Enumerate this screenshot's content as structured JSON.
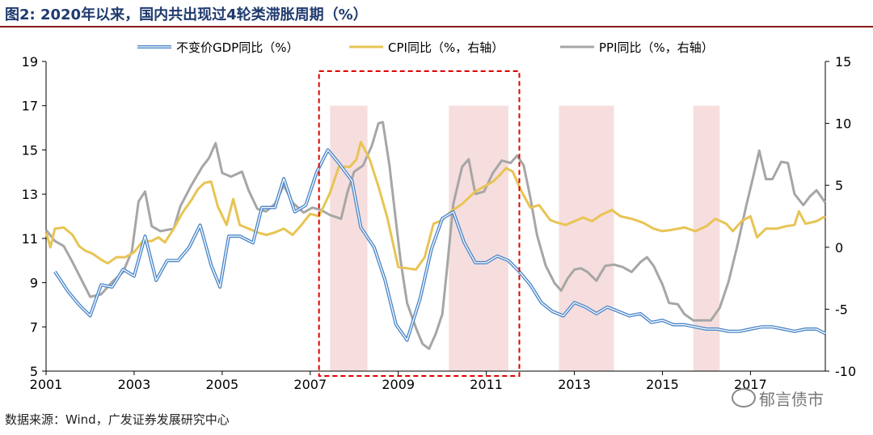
{
  "header": {
    "title": "图2: 2020年以来，国内共出现过4轮类滞胀周期（%）"
  },
  "footer": {
    "source": "数据来源：Wind，广发证券发展研究中心",
    "watermark": "郁言债市"
  },
  "chart_data": {
    "type": "line",
    "title": "图2: 2020年以来，国内共出现过4轮类滞胀周期（%）",
    "x_ticks": [
      "2001",
      "2003",
      "2005",
      "2007",
      "2009",
      "2011",
      "2013",
      "2015",
      "2017"
    ],
    "x_range": [
      2001.0,
      2018.7
    ],
    "y_left": {
      "range": [
        5,
        19
      ],
      "ticks": [
        "5",
        "7",
        "9",
        "11",
        "13",
        "15",
        "17",
        "19"
      ]
    },
    "y_right": {
      "range": [
        -10,
        15
      ],
      "ticks": [
        "-10",
        "-5",
        "0",
        "5",
        "10",
        "15"
      ]
    },
    "colors": {
      "gdp": "#4a86c8",
      "gdp_inner": "#ffffff",
      "cpi": "#e8c454",
      "ppi": "#a6a6a6",
      "shade": "#f6dede",
      "box": "#e00000",
      "axis": "#000000"
    },
    "shaded_periods": [
      [
        2007.45,
        2008.3
      ],
      [
        2010.15,
        2011.5
      ],
      [
        2012.65,
        2013.9
      ],
      [
        2015.7,
        2016.3
      ]
    ],
    "highlight_box": [
      2007.2,
      2011.75
    ],
    "series": [
      {
        "key": "gdp",
        "name": "不变价GDP同比（%）",
        "axis": "left",
        "points": [
          [
            2001.2,
            9.5
          ],
          [
            2001.5,
            8.6
          ],
          [
            2001.75,
            8.0
          ],
          [
            2002.0,
            7.5
          ],
          [
            2002.25,
            8.9
          ],
          [
            2002.5,
            8.8
          ],
          [
            2002.75,
            9.6
          ],
          [
            2003.0,
            9.3
          ],
          [
            2003.25,
            11.1
          ],
          [
            2003.5,
            9.1
          ],
          [
            2003.75,
            10.0
          ],
          [
            2004.0,
            10.0
          ],
          [
            2004.25,
            10.6
          ],
          [
            2004.5,
            11.6
          ],
          [
            2004.75,
            9.8
          ],
          [
            2004.95,
            8.8
          ],
          [
            2005.15,
            11.1
          ],
          [
            2005.4,
            11.1
          ],
          [
            2005.7,
            10.8
          ],
          [
            2005.9,
            12.4
          ],
          [
            2006.2,
            12.4
          ],
          [
            2006.4,
            13.7
          ],
          [
            2006.65,
            12.2
          ],
          [
            2006.9,
            12.5
          ],
          [
            2007.15,
            14.0
          ],
          [
            2007.4,
            15.0
          ],
          [
            2007.65,
            14.4
          ],
          [
            2007.95,
            13.6
          ],
          [
            2008.15,
            11.5
          ],
          [
            2008.45,
            10.6
          ],
          [
            2008.7,
            9.1
          ],
          [
            2008.95,
            7.1
          ],
          [
            2009.2,
            6.4
          ],
          [
            2009.5,
            8.3
          ],
          [
            2009.75,
            10.5
          ],
          [
            2010.0,
            11.9
          ],
          [
            2010.25,
            12.2
          ],
          [
            2010.5,
            10.8
          ],
          [
            2010.75,
            9.9
          ],
          [
            2011.0,
            9.9
          ],
          [
            2011.25,
            10.2
          ],
          [
            2011.5,
            10.0
          ],
          [
            2011.75,
            9.5
          ],
          [
            2012.0,
            8.9
          ],
          [
            2012.25,
            8.1
          ],
          [
            2012.5,
            7.7
          ],
          [
            2012.75,
            7.5
          ],
          [
            2013.0,
            8.1
          ],
          [
            2013.25,
            7.9
          ],
          [
            2013.5,
            7.6
          ],
          [
            2013.75,
            7.9
          ],
          [
            2014.0,
            7.7
          ],
          [
            2014.25,
            7.5
          ],
          [
            2014.5,
            7.6
          ],
          [
            2014.75,
            7.2
          ],
          [
            2015.0,
            7.3
          ],
          [
            2015.25,
            7.1
          ],
          [
            2015.5,
            7.1
          ],
          [
            2015.75,
            7.0
          ],
          [
            2016.0,
            6.9
          ],
          [
            2016.25,
            6.9
          ],
          [
            2016.5,
            6.8
          ],
          [
            2016.75,
            6.8
          ],
          [
            2017.0,
            6.9
          ],
          [
            2017.25,
            7.0
          ],
          [
            2017.5,
            7.0
          ],
          [
            2017.75,
            6.9
          ],
          [
            2018.0,
            6.8
          ],
          [
            2018.25,
            6.9
          ],
          [
            2018.5,
            6.9
          ],
          [
            2018.7,
            6.7
          ]
        ]
      },
      {
        "key": "cpi",
        "name": "CPI同比（%，右轴）",
        "axis": "right",
        "points": [
          [
            2001.0,
            1.2
          ],
          [
            2001.1,
            0.0
          ],
          [
            2001.2,
            1.5
          ],
          [
            2001.4,
            1.6
          ],
          [
            2001.6,
            1.0
          ],
          [
            2001.75,
            0.1
          ],
          [
            2001.9,
            -0.3
          ],
          [
            2002.05,
            -0.5
          ],
          [
            2002.25,
            -1.0
          ],
          [
            2002.4,
            -1.3
          ],
          [
            2002.6,
            -0.8
          ],
          [
            2002.8,
            -0.8
          ],
          [
            2003.0,
            -0.4
          ],
          [
            2003.2,
            0.5
          ],
          [
            2003.4,
            0.5
          ],
          [
            2003.55,
            0.8
          ],
          [
            2003.7,
            0.4
          ],
          [
            2003.9,
            1.5
          ],
          [
            2004.1,
            2.8
          ],
          [
            2004.3,
            3.8
          ],
          [
            2004.45,
            4.7
          ],
          [
            2004.6,
            5.2
          ],
          [
            2004.75,
            5.3
          ],
          [
            2004.9,
            3.3
          ],
          [
            2005.1,
            1.8
          ],
          [
            2005.25,
            3.9
          ],
          [
            2005.4,
            1.8
          ],
          [
            2005.6,
            1.5
          ],
          [
            2005.8,
            1.2
          ],
          [
            2006.0,
            1.0
          ],
          [
            2006.2,
            1.2
          ],
          [
            2006.4,
            1.5
          ],
          [
            2006.6,
            1.0
          ],
          [
            2006.8,
            1.8
          ],
          [
            2007.0,
            2.7
          ],
          [
            2007.2,
            2.5
          ],
          [
            2007.45,
            4.4
          ],
          [
            2007.65,
            6.5
          ],
          [
            2007.9,
            6.5
          ],
          [
            2008.05,
            7.1
          ],
          [
            2008.15,
            8.5
          ],
          [
            2008.35,
            7.1
          ],
          [
            2008.55,
            4.9
          ],
          [
            2008.75,
            2.4
          ],
          [
            2009.0,
            -1.6
          ],
          [
            2009.2,
            -1.7
          ],
          [
            2009.4,
            -1.8
          ],
          [
            2009.6,
            -0.8
          ],
          [
            2009.8,
            1.9
          ],
          [
            2010.0,
            2.2
          ],
          [
            2010.2,
            2.9
          ],
          [
            2010.45,
            3.5
          ],
          [
            2010.75,
            4.5
          ],
          [
            2010.95,
            4.9
          ],
          [
            2011.15,
            5.3
          ],
          [
            2011.3,
            5.8
          ],
          [
            2011.45,
            6.4
          ],
          [
            2011.6,
            6.1
          ],
          [
            2011.8,
            4.5
          ],
          [
            2012.0,
            3.2
          ],
          [
            2012.2,
            3.4
          ],
          [
            2012.45,
            2.2
          ],
          [
            2012.6,
            2.0
          ],
          [
            2012.8,
            1.8
          ],
          [
            2013.0,
            2.1
          ],
          [
            2013.2,
            2.4
          ],
          [
            2013.4,
            2.1
          ],
          [
            2013.6,
            2.6
          ],
          [
            2013.85,
            3.0
          ],
          [
            2014.05,
            2.5
          ],
          [
            2014.3,
            2.3
          ],
          [
            2014.55,
            2.0
          ],
          [
            2014.8,
            1.5
          ],
          [
            2015.0,
            1.3
          ],
          [
            2015.2,
            1.4
          ],
          [
            2015.5,
            1.6
          ],
          [
            2015.75,
            1.3
          ],
          [
            2016.0,
            1.7
          ],
          [
            2016.2,
            2.3
          ],
          [
            2016.45,
            1.9
          ],
          [
            2016.6,
            1.3
          ],
          [
            2016.8,
            2.1
          ],
          [
            2017.0,
            2.5
          ],
          [
            2017.15,
            0.8
          ],
          [
            2017.35,
            1.5
          ],
          [
            2017.6,
            1.5
          ],
          [
            2017.8,
            1.7
          ],
          [
            2018.0,
            1.8
          ],
          [
            2018.1,
            2.9
          ],
          [
            2018.25,
            1.9
          ],
          [
            2018.5,
            2.1
          ],
          [
            2018.7,
            2.5
          ]
        ]
      },
      {
        "key": "ppi",
        "name": "PPI同比（%，右轴）",
        "axis": "right",
        "points": [
          [
            2001.0,
            1.4
          ],
          [
            2001.2,
            0.5
          ],
          [
            2001.4,
            0.1
          ],
          [
            2001.6,
            -1.2
          ],
          [
            2001.8,
            -2.6
          ],
          [
            2002.0,
            -4.0
          ],
          [
            2002.25,
            -3.8
          ],
          [
            2002.5,
            -2.8
          ],
          [
            2002.75,
            -2.0
          ],
          [
            2002.95,
            -0.3
          ],
          [
            2003.1,
            3.7
          ],
          [
            2003.25,
            4.5
          ],
          [
            2003.4,
            1.7
          ],
          [
            2003.6,
            1.3
          ],
          [
            2003.9,
            1.5
          ],
          [
            2004.05,
            3.3
          ],
          [
            2004.3,
            5.0
          ],
          [
            2004.55,
            6.5
          ],
          [
            2004.7,
            7.2
          ],
          [
            2004.85,
            8.4
          ],
          [
            2005.0,
            6.0
          ],
          [
            2005.2,
            5.7
          ],
          [
            2005.45,
            6.1
          ],
          [
            2005.6,
            4.6
          ],
          [
            2005.8,
            3.1
          ],
          [
            2006.0,
            2.9
          ],
          [
            2006.2,
            3.5
          ],
          [
            2006.4,
            5.0
          ],
          [
            2006.6,
            3.6
          ],
          [
            2006.85,
            2.8
          ],
          [
            2007.05,
            3.2
          ],
          [
            2007.25,
            3.0
          ],
          [
            2007.45,
            2.6
          ],
          [
            2007.7,
            2.3
          ],
          [
            2007.85,
            4.5
          ],
          [
            2008.0,
            6.1
          ],
          [
            2008.2,
            6.6
          ],
          [
            2008.4,
            8.2
          ],
          [
            2008.55,
            10.0
          ],
          [
            2008.65,
            10.1
          ],
          [
            2008.8,
            6.6
          ],
          [
            2008.95,
            2.0
          ],
          [
            2009.05,
            -1.0
          ],
          [
            2009.2,
            -4.5
          ],
          [
            2009.4,
            -6.5
          ],
          [
            2009.55,
            -7.8
          ],
          [
            2009.7,
            -8.2
          ],
          [
            2009.85,
            -7.0
          ],
          [
            2010.0,
            -5.4
          ],
          [
            2010.1,
            -2.0
          ],
          [
            2010.25,
            3.5
          ],
          [
            2010.45,
            6.5
          ],
          [
            2010.6,
            7.1
          ],
          [
            2010.75,
            4.3
          ],
          [
            2010.95,
            4.5
          ],
          [
            2011.15,
            6.0
          ],
          [
            2011.35,
            7.0
          ],
          [
            2011.55,
            6.8
          ],
          [
            2011.7,
            7.4
          ],
          [
            2011.85,
            6.6
          ],
          [
            2012.0,
            4.0
          ],
          [
            2012.15,
            1.0
          ],
          [
            2012.35,
            -1.5
          ],
          [
            2012.55,
            -2.9
          ],
          [
            2012.7,
            -3.5
          ],
          [
            2012.85,
            -2.5
          ],
          [
            2013.0,
            -1.8
          ],
          [
            2013.15,
            -1.7
          ],
          [
            2013.3,
            -2.0
          ],
          [
            2013.5,
            -2.7
          ],
          [
            2013.7,
            -1.5
          ],
          [
            2013.9,
            -1.4
          ],
          [
            2014.1,
            -1.6
          ],
          [
            2014.3,
            -2.0
          ],
          [
            2014.5,
            -1.2
          ],
          [
            2014.65,
            -0.8
          ],
          [
            2014.8,
            -1.5
          ],
          [
            2015.0,
            -3.0
          ],
          [
            2015.15,
            -4.5
          ],
          [
            2015.35,
            -4.6
          ],
          [
            2015.5,
            -5.4
          ],
          [
            2015.7,
            -5.9
          ],
          [
            2015.9,
            -5.9
          ],
          [
            2016.1,
            -5.9
          ],
          [
            2016.3,
            -4.9
          ],
          [
            2016.5,
            -2.8
          ],
          [
            2016.7,
            0.1
          ],
          [
            2016.9,
            3.3
          ],
          [
            2017.05,
            5.5
          ],
          [
            2017.2,
            7.8
          ],
          [
            2017.35,
            5.5
          ],
          [
            2017.5,
            5.5
          ],
          [
            2017.7,
            6.9
          ],
          [
            2017.85,
            6.8
          ],
          [
            2018.0,
            4.3
          ],
          [
            2018.2,
            3.4
          ],
          [
            2018.35,
            4.1
          ],
          [
            2018.5,
            4.6
          ],
          [
            2018.7,
            3.6
          ]
        ]
      }
    ]
  }
}
